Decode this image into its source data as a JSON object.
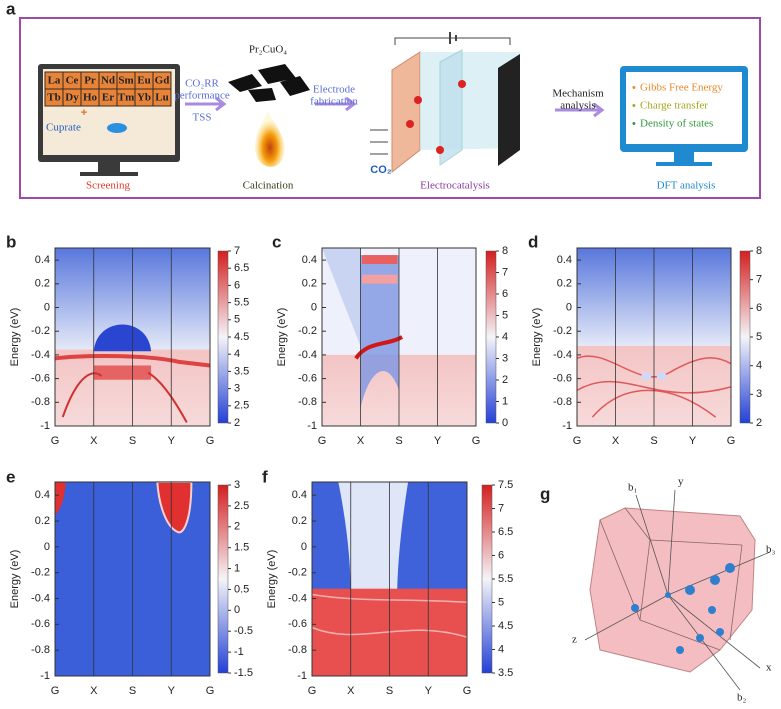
{
  "a": {
    "label": "a",
    "elements": [
      [
        "La",
        "Ce",
        "Pr",
        "Nd",
        "Sm",
        "Eu",
        "Gd"
      ],
      [
        "Tb",
        "Dy",
        "Ho",
        "Er",
        "Tm",
        "Yb",
        "Lu"
      ]
    ],
    "cuprate": "Cuprate",
    "arrow1": [
      "CO₂RR",
      "performance",
      "TSS"
    ],
    "compound": "Pr₂CuO₄",
    "arrow2": [
      "Electrode",
      "fabrication"
    ],
    "gas": "CO₂",
    "arrow3": [
      "Mechanism",
      "analysis"
    ],
    "dft": [
      "Gibbs Free Energy",
      "Charge transfer",
      "Density of states"
    ],
    "stages": [
      "Screening",
      "Calcination",
      "Electrocatalysis",
      "DFT analysis"
    ]
  },
  "panels": [
    {
      "label": "b",
      "ylabel": "Energy (eV)",
      "yticks": [
        0.4,
        0.2,
        0,
        -0.2,
        -0.4,
        -0.6,
        -0.8,
        -1
      ],
      "xticks": [
        "G",
        "X",
        "S",
        "Y",
        "G"
      ],
      "colorbar": [
        7,
        6.5,
        6,
        5.5,
        5,
        4.5,
        4,
        3.5,
        3,
        2.5,
        2
      ]
    },
    {
      "label": "c",
      "ylabel": "Energy (eV)",
      "yticks": [
        0.4,
        0.2,
        0,
        -0.2,
        -0.4,
        -0.6,
        -0.8,
        -1
      ],
      "xticks": [
        "G",
        "X",
        "S",
        "Y",
        "G"
      ],
      "colorbar": [
        8,
        7,
        6,
        5,
        4,
        3,
        2,
        1,
        0
      ]
    },
    {
      "label": "d",
      "ylabel": "Energy (eV)",
      "yticks": [
        0.4,
        0.2,
        0,
        -0.2,
        -0.4,
        -0.6,
        -0.8,
        -1
      ],
      "xticks": [
        "G",
        "X",
        "S",
        "Y",
        "G"
      ],
      "colorbar": [
        8,
        7,
        6,
        5,
        4,
        3,
        2
      ]
    },
    {
      "label": "e",
      "ylabel": "Energy (eV)",
      "yticks": [
        0.4,
        0.2,
        0,
        -0.2,
        -0.4,
        -0.6,
        -0.8,
        -1
      ],
      "xticks": [
        "G",
        "X",
        "S",
        "Y",
        "G"
      ],
      "colorbar": [
        3,
        2.5,
        2,
        1.5,
        1,
        0.5,
        0,
        -0.5,
        -1,
        -1.5
      ]
    },
    {
      "label": "f",
      "ylabel": "Energy (eV)",
      "yticks": [
        0.4,
        0.2,
        0,
        -0.2,
        -0.4,
        -0.6,
        -0.8,
        -1
      ],
      "xticks": [
        "G",
        "X",
        "S",
        "Y",
        "G"
      ],
      "colorbar": [
        7.5,
        7,
        6.5,
        6,
        5.5,
        5,
        4.5,
        4,
        3.5
      ]
    }
  ],
  "g": {
    "label": "g",
    "axes": [
      "b₁",
      "y",
      "b₃",
      "z",
      "x",
      "b₂"
    ]
  }
}
